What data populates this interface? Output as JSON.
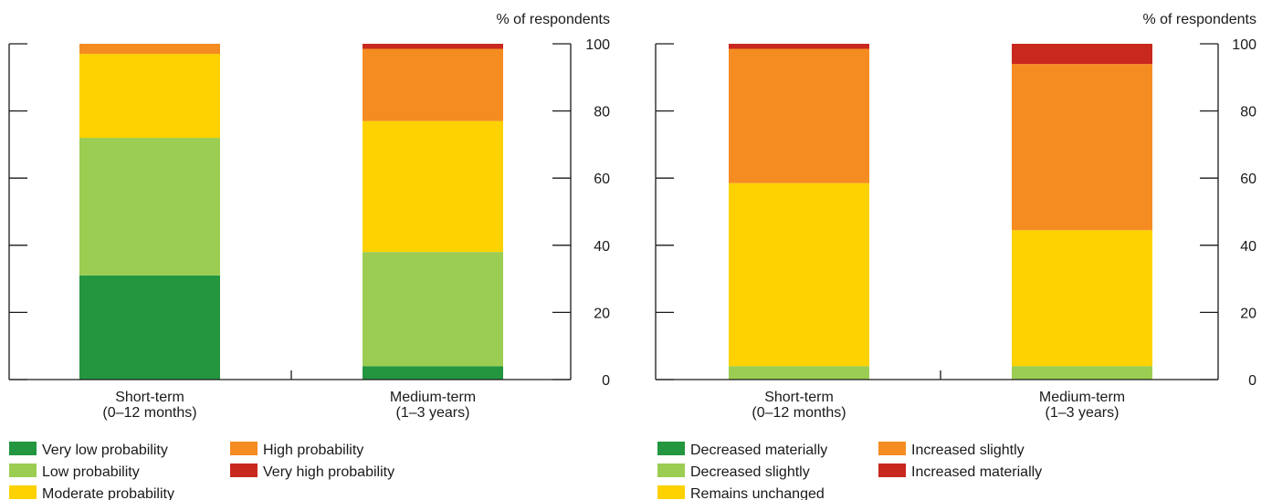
{
  "chart_data": [
    {
      "type": "bar",
      "stacked": true,
      "ylabel": "% of respondents",
      "ylim": [
        0,
        100
      ],
      "yticks": [
        0,
        20,
        40,
        60,
        80,
        100
      ],
      "categories": [
        "Short-term\n(0–12 months)",
        "Medium-term\n(1–3 years)"
      ],
      "series": [
        {
          "name": "Very low probability",
          "color": "#23963f",
          "values": [
            31,
            4
          ]
        },
        {
          "name": "Low probability",
          "color": "#9bcd52",
          "values": [
            41,
            34
          ]
        },
        {
          "name": "Moderate probability",
          "color": "#fdd200",
          "values": [
            25,
            39
          ]
        },
        {
          "name": "High probability",
          "color": "#f58c22",
          "values": [
            3,
            21.5
          ]
        },
        {
          "name": "Very high probability",
          "color": "#c8281e",
          "values": [
            0,
            1.5
          ]
        }
      ],
      "legend_position": "bottom-left"
    },
    {
      "type": "bar",
      "stacked": true,
      "ylabel": "% of respondents",
      "ylim": [
        0,
        100
      ],
      "yticks": [
        0,
        20,
        40,
        60,
        80,
        100
      ],
      "categories": [
        "Short-term\n(0–12 months)",
        "Medium-term\n(1–3 years)"
      ],
      "series": [
        {
          "name": "Decreased materially",
          "color": "#23963f",
          "values": [
            0,
            0
          ]
        },
        {
          "name": "Decreased slightly",
          "color": "#9bcd52",
          "values": [
            4,
            4
          ]
        },
        {
          "name": "Remains unchanged",
          "color": "#fdd200",
          "values": [
            54.5,
            40.5
          ]
        },
        {
          "name": "Increased slightly",
          "color": "#f58c22",
          "values": [
            40,
            49.5
          ]
        },
        {
          "name": "Increased materially",
          "color": "#c8281e",
          "values": [
            1.5,
            6
          ]
        }
      ],
      "legend_position": "bottom-left"
    }
  ]
}
